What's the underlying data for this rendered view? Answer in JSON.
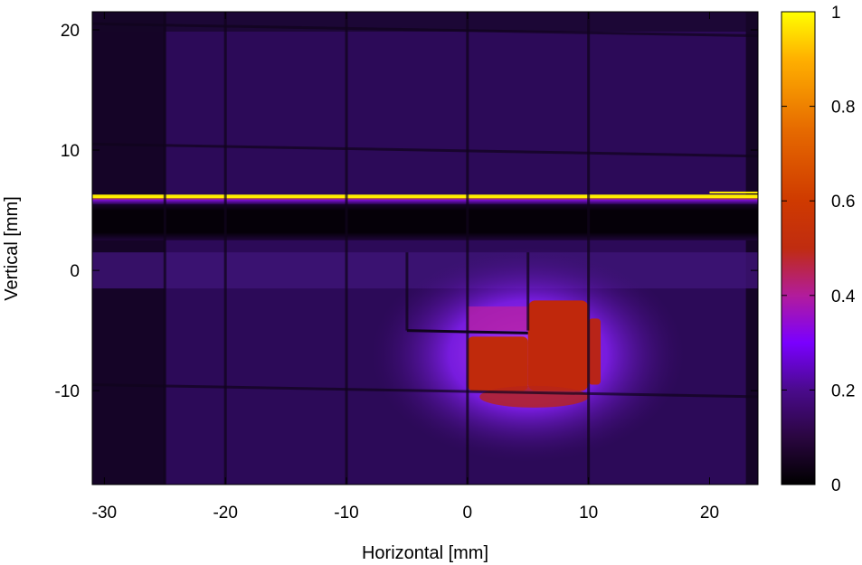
{
  "chart_data": {
    "type": "heatmap",
    "title": "",
    "xlabel": "Horizontal [mm]",
    "ylabel": "Vertical [mm]",
    "xlim": [
      -31,
      24
    ],
    "ylim": [
      -17.8,
      21.5
    ],
    "xticks": [
      -30,
      -20,
      -10,
      0,
      10,
      20
    ],
    "yticks": [
      -10,
      0,
      10,
      20
    ],
    "colorbar": {
      "min": 0,
      "max": 1,
      "ticks": [
        0,
        0.2,
        0.4,
        0.6,
        0.8,
        1
      ],
      "colormap": [
        "#000000",
        "#2a0640",
        "#4a0a8c",
        "#7a00ff",
        "#b21c9c",
        "#c02c10",
        "#e66a00",
        "#ffb000",
        "#ffff00"
      ]
    },
    "grid_lines": {
      "vertical_x": [
        -25,
        -20,
        -10,
        -5,
        0,
        5,
        10
      ],
      "horizontal_y": [
        20,
        10,
        -10
      ]
    },
    "regions": [
      {
        "name": "background",
        "value": 0.14
      },
      {
        "name": "dark-band",
        "y_range": [
          2.5,
          5.8
        ],
        "value": 0.0
      },
      {
        "name": "bright-strip",
        "y_range": [
          6.0,
          6.3
        ],
        "value": 0.95
      },
      {
        "name": "upper-fade-band",
        "y_range": [
          5.5,
          6.0
        ],
        "value": 0.3
      },
      {
        "name": "lower-band",
        "y_range": [
          -1.5,
          1.5
        ],
        "value": 0.12
      },
      {
        "name": "left-dark-column",
        "x_range": [
          -31,
          -25
        ],
        "value": 0.04
      },
      {
        "name": "right-dark-column",
        "x_range": [
          23,
          24
        ],
        "value": 0.04
      },
      {
        "name": "beam-glow",
        "center": [
          5,
          -7
        ],
        "radius_x": 13,
        "radius_y": 9,
        "value": 0.35
      },
      {
        "name": "beam-core",
        "x_range": [
          0,
          11
        ],
        "y_range": [
          -11,
          -3
        ],
        "value": 0.55
      }
    ]
  }
}
